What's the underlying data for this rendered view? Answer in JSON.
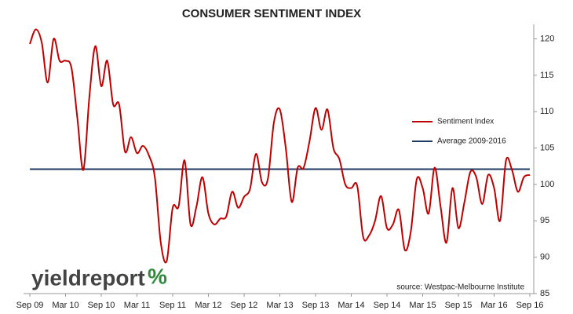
{
  "chart_data": {
    "type": "line",
    "title": "CONSUMER SENTIMENT INDEX",
    "categories": [
      "Sep 09",
      null,
      null,
      null,
      null,
      null,
      "Mar 10",
      null,
      null,
      null,
      null,
      null,
      "Sep 10",
      null,
      null,
      null,
      null,
      null,
      "Mar 11",
      null,
      null,
      null,
      null,
      null,
      "Sep 11",
      null,
      null,
      null,
      null,
      null,
      "Mar 12",
      null,
      null,
      null,
      null,
      null,
      "Sep 12",
      null,
      null,
      null,
      null,
      null,
      "Mar 13",
      null,
      null,
      null,
      null,
      null,
      "Sep 13",
      null,
      null,
      null,
      null,
      null,
      "Mar 14",
      null,
      null,
      null,
      null,
      null,
      "Sep 14",
      null,
      null,
      null,
      null,
      null,
      "Mar 15",
      null,
      null,
      null,
      null,
      null,
      "Sep 15",
      null,
      null,
      null,
      null,
      null,
      "Mar 16",
      null,
      null,
      null,
      null,
      null,
      "Sep 16"
    ],
    "series": [
      {
        "name": "Sentiment Index",
        "color": "#c00000",
        "values": [
          119.3,
          121.3,
          119.5,
          114,
          120,
          117,
          117,
          116,
          109,
          102,
          112,
          119,
          113.5,
          117,
          111,
          111,
          104.5,
          106.5,
          104.3,
          105.3,
          104,
          101,
          92,
          89.5,
          96.8,
          97,
          103.3,
          94.5,
          97,
          101,
          96,
          94.5,
          95.3,
          95.6,
          99,
          96.8,
          98.3,
          99.4,
          104.2,
          100.3,
          100.8,
          108.5,
          110.3,
          105,
          97.6,
          102.3,
          102.3,
          106,
          110.5,
          107.5,
          110.3,
          105,
          103.5,
          100,
          99.5,
          99.8,
          92.8,
          93,
          95,
          98.4,
          94,
          94.5,
          96.5,
          91,
          93.5,
          100.7,
          99.5,
          96,
          102.3,
          97,
          92,
          99.5,
          94,
          97.5,
          101.7,
          101,
          97.3,
          101.3,
          99.5,
          95,
          103.3,
          102,
          99,
          101,
          101.3
        ]
      },
      {
        "name": "Average 2009-2016",
        "color": "#1f3864",
        "values": [
          102.1,
          102.1,
          102.1,
          102.1,
          102.1,
          102.1,
          102.1,
          102.1,
          102.1,
          102.1,
          102.1,
          102.1,
          102.1,
          102.1,
          102.1,
          102.1,
          102.1,
          102.1,
          102.1,
          102.1,
          102.1,
          102.1,
          102.1,
          102.1,
          102.1,
          102.1,
          102.1,
          102.1,
          102.1,
          102.1,
          102.1,
          102.1,
          102.1,
          102.1,
          102.1,
          102.1,
          102.1,
          102.1,
          102.1,
          102.1,
          102.1,
          102.1,
          102.1,
          102.1,
          102.1,
          102.1,
          102.1,
          102.1,
          102.1,
          102.1,
          102.1,
          102.1,
          102.1,
          102.1,
          102.1,
          102.1,
          102.1,
          102.1,
          102.1,
          102.1,
          102.1,
          102.1,
          102.1,
          102.1,
          102.1,
          102.1,
          102.1,
          102.1,
          102.1,
          102.1,
          102.1,
          102.1,
          102.1,
          102.1,
          102.1,
          102.1,
          102.1,
          102.1,
          102.1,
          102.1,
          102.1,
          102.1,
          102.1,
          102.1,
          102.1
        ]
      }
    ],
    "ylim": [
      85,
      122
    ],
    "yticks": [
      85,
      90,
      95,
      100,
      105,
      110,
      115,
      120
    ],
    "y_axis_side": "right",
    "grid": false,
    "legend": "right",
    "annotations": [
      "source: Westpac-Melbourne Institute"
    ],
    "logo": "yieldreport",
    "logo_mark": "%"
  }
}
